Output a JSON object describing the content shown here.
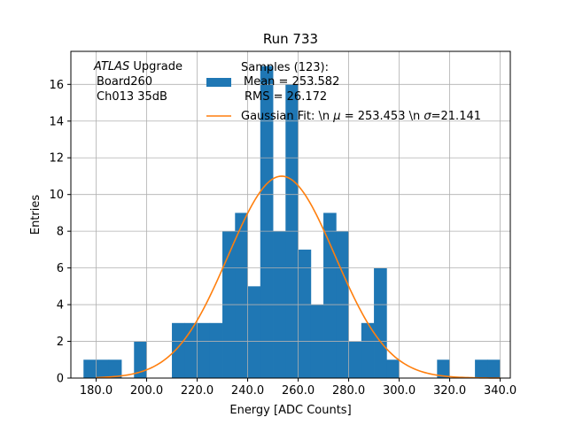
{
  "chart_data": {
    "type": "histogram",
    "title": "Run 733",
    "xlabel": "Energy [ADC Counts]",
    "ylabel": "Entries",
    "xlim": [
      170,
      344
    ],
    "ylim": [
      0,
      17.8
    ],
    "xticks": [
      180,
      200,
      220,
      240,
      260,
      280,
      300,
      320,
      340
    ],
    "xtick_labels": [
      "180.0",
      "200.0",
      "220.0",
      "240.0",
      "260.0",
      "280.0",
      "300.0",
      "320.0",
      "340.0"
    ],
    "yticks": [
      0,
      2,
      4,
      6,
      8,
      10,
      12,
      14,
      16
    ],
    "ytick_labels": [
      "0",
      "2",
      "4",
      "6",
      "8",
      "10",
      "12",
      "14",
      "16"
    ],
    "grid": true,
    "bin_width": 5,
    "bins": [
      {
        "x0": 175,
        "count": 1
      },
      {
        "x0": 180,
        "count": 1
      },
      {
        "x0": 185,
        "count": 1
      },
      {
        "x0": 190,
        "count": 0
      },
      {
        "x0": 195,
        "count": 2
      },
      {
        "x0": 200,
        "count": 0
      },
      {
        "x0": 205,
        "count": 0
      },
      {
        "x0": 210,
        "count": 3
      },
      {
        "x0": 215,
        "count": 3
      },
      {
        "x0": 220,
        "count": 3
      },
      {
        "x0": 225,
        "count": 3
      },
      {
        "x0": 230,
        "count": 8
      },
      {
        "x0": 235,
        "count": 9
      },
      {
        "x0": 240,
        "count": 5
      },
      {
        "x0": 245,
        "count": 17
      },
      {
        "x0": 250,
        "count": 8
      },
      {
        "x0": 255,
        "count": 16
      },
      {
        "x0": 260,
        "count": 7
      },
      {
        "x0": 265,
        "count": 4
      },
      {
        "x0": 270,
        "count": 9
      },
      {
        "x0": 275,
        "count": 8
      },
      {
        "x0": 280,
        "count": 2
      },
      {
        "x0": 285,
        "count": 3
      },
      {
        "x0": 290,
        "count": 6
      },
      {
        "x0": 295,
        "count": 1
      },
      {
        "x0": 300,
        "count": 0
      },
      {
        "x0": 305,
        "count": 0
      },
      {
        "x0": 310,
        "count": 0
      },
      {
        "x0": 315,
        "count": 1
      },
      {
        "x0": 320,
        "count": 0
      },
      {
        "x0": 325,
        "count": 0
      },
      {
        "x0": 330,
        "count": 1
      },
      {
        "x0": 335,
        "count": 1
      }
    ],
    "fit": {
      "type": "gaussian",
      "mu": 253.453,
      "sigma": 21.141,
      "amplitude": 11.0,
      "x_range": [
        180,
        340
      ]
    },
    "histogram_color": "#1f77b4",
    "fit_color": "#ff7f0e",
    "annotation": {
      "italic": "ATLAS",
      "rest": " Upgrade",
      "line2": "Board260",
      "line3": "Ch013 35dB"
    },
    "legend": {
      "position": "top-center",
      "hist_lines": [
        "Samples (123):",
        "Mean = 253.582",
        "RMS = 26.172"
      ],
      "fit_label_parts": [
        "Gaussian Fit: \\n ",
        "μ",
        " = 253.453 \\n ",
        "σ",
        "=21.141"
      ]
    }
  }
}
